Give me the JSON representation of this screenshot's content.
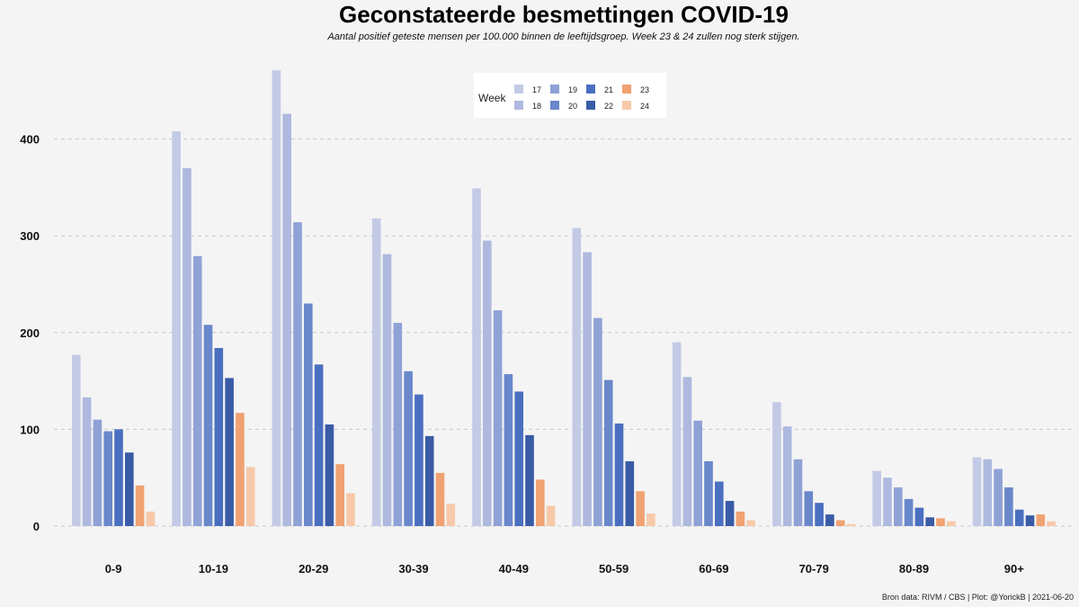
{
  "chart_data": {
    "type": "bar",
    "title": "Geconstateerde besmettingen COVID-19",
    "subtitle": "Aantal positief geteste mensen per 100.000 binnen de leeftijdsgroep. Week 23 & 24 zullen nog sterk stijgen.",
    "caption": "Bron data: RIVM / CBS  | Plot: @YorickB |  2021-06-20",
    "xlabel": "",
    "ylabel": "",
    "ylim": [
      0,
      480
    ],
    "yticks": [
      "0",
      "100",
      "200",
      "300",
      "400"
    ],
    "grid": true,
    "legend": {
      "title": "Week",
      "placement": "top-center"
    },
    "categories": [
      "0-9",
      "10-19",
      "20-29",
      "30-39",
      "40-49",
      "50-59",
      "60-69",
      "70-79",
      "80-89",
      "90+"
    ],
    "series": [
      {
        "name": "17",
        "color": "#c3cae6",
        "values": [
          177,
          408,
          471,
          318,
          349,
          308,
          190,
          128,
          57,
          71
        ]
      },
      {
        "name": "18",
        "color": "#aeb9df",
        "values": [
          133,
          370,
          426,
          281,
          295,
          283,
          154,
          103,
          50,
          69
        ]
      },
      {
        "name": "19",
        "color": "#8fa2d6",
        "values": [
          110,
          279,
          314,
          210,
          223,
          215,
          109,
          69,
          40,
          59
        ]
      },
      {
        "name": "20",
        "color": "#6987cb",
        "values": [
          98,
          208,
          230,
          160,
          157,
          151,
          67,
          36,
          28,
          40
        ]
      },
      {
        "name": "21",
        "color": "#4a6fc0",
        "values": [
          100,
          184,
          167,
          136,
          139,
          106,
          46,
          24,
          19,
          17
        ]
      },
      {
        "name": "22",
        "color": "#3a5ba6",
        "values": [
          76,
          153,
          105,
          93,
          94,
          67,
          26,
          12,
          9,
          11
        ]
      },
      {
        "name": "23",
        "color": "#f0a272",
        "values": [
          42,
          117,
          64,
          55,
          48,
          36,
          15,
          6,
          8,
          12
        ]
      },
      {
        "name": "24",
        "color": "#f7c9a9",
        "values": [
          15,
          61,
          34,
          23,
          21,
          13,
          6,
          2,
          5,
          5
        ]
      }
    ]
  }
}
